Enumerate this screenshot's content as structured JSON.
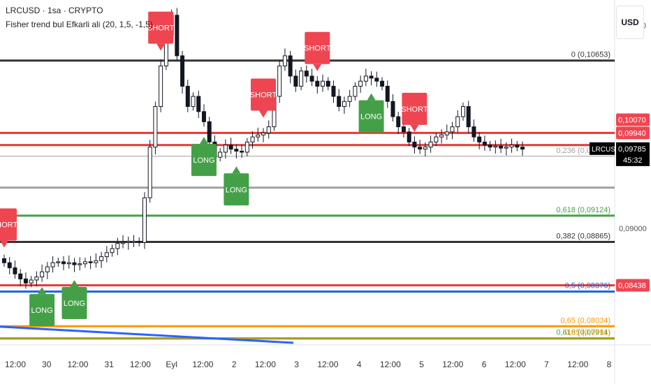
{
  "header": {
    "symbol_line": "LRCUSD · 1sa · CRYPTO",
    "indicator_line": "Fisher trend bul Efkarli ali (20, 1,5, -1,5)",
    "currency_button": "USD"
  },
  "chart_data": {
    "type": "candlestick",
    "ylim": [
      0.0785,
      0.1125
    ],
    "x_ticks": [
      "12:00",
      "30",
      "12:00",
      "31",
      "12:00",
      "Eyl",
      "12:00",
      "2",
      "12:00",
      "3",
      "12:00",
      "4",
      "12:00",
      "5",
      "12:00",
      "6",
      "12:00",
      "7",
      "12:00",
      "8"
    ],
    "y_ticks": [
      "0,11000",
      "0,09000"
    ],
    "closes": [
      0.0866,
      0.0861,
      0.0855,
      0.085,
      0.0846,
      0.0849,
      0.0852,
      0.0857,
      0.0862,
      0.0866,
      0.0867,
      0.0865,
      0.0866,
      0.0864,
      0.0865,
      0.0867,
      0.0866,
      0.0868,
      0.0872,
      0.0876,
      0.088,
      0.0885,
      0.0886,
      0.0887,
      0.0887,
      0.0886,
      0.093,
      0.098,
      0.102,
      0.106,
      0.109,
      0.111,
      0.107,
      0.104,
      0.102,
      0.103,
      0.1015,
      0.1005,
      0.0985,
      0.097,
      0.0975,
      0.0982,
      0.0978,
      0.0976,
      0.0975,
      0.0985,
      0.099,
      0.0992,
      0.0994,
      0.1,
      0.103,
      0.106,
      0.107,
      0.105,
      0.104,
      0.1055,
      0.105,
      0.1045,
      0.104,
      0.1045,
      0.104,
      0.103,
      0.102,
      0.1025,
      0.103,
      0.104,
      0.1045,
      0.105,
      0.1048,
      0.1045,
      0.104,
      0.1025,
      0.101,
      0.1,
      0.0995,
      0.0985,
      0.098,
      0.0978,
      0.098,
      0.0985,
      0.099,
      0.0992,
      0.0995,
      0.1,
      0.101,
      0.102,
      0.1,
      0.099,
      0.0985,
      0.0982,
      0.098,
      0.0981,
      0.0979,
      0.098,
      0.0982,
      0.098,
      0.0978
    ],
    "hlines": [
      {
        "name": "0",
        "value": 0.10653,
        "label": "0 (0,10653)",
        "color": "#333333",
        "width": 3
      },
      {
        "name": "red-upper",
        "value": 0.0994,
        "label": "",
        "color": "#e53935",
        "width": 3
      },
      {
        "name": "red-mid",
        "value": 0.0982,
        "label": "",
        "color": "#e53935",
        "width": 3
      },
      {
        "name": "0.236",
        "value": 0.0971,
        "label": "0,236 (0,09710)",
        "color": "#a0a0a0",
        "width": 1
      },
      {
        "name": "grey-0.09400",
        "value": 0.094,
        "label": "",
        "color": "#a0a0a0",
        "width": 3
      },
      {
        "name": "0.618",
        "value": 0.09124,
        "label": "0,618 (0,09124)",
        "color": "#43a047",
        "width": 3
      },
      {
        "name": "0.382",
        "value": 0.08865,
        "label": "0,382 (0,08865)",
        "color": "#333333",
        "width": 3
      },
      {
        "name": "red-lower",
        "value": 0.08438,
        "label": "",
        "color": "#e53935",
        "width": 3
      },
      {
        "name": "0.5",
        "value": 0.08376,
        "label": "0,5 (0,08376)",
        "color": "#1e63d6",
        "width": 3
      },
      {
        "name": "0.65",
        "value": 0.08034,
        "label": "0,65 (0,08034)",
        "color": "#ff9800",
        "width": 3
      },
      {
        "name": "0.618b",
        "value": 0.07914,
        "label": "0,618 (0,07914)",
        "color": "#43a047",
        "width": 3
      },
      {
        "name": "0.65b",
        "value": 0.07914,
        "label": "0,65 (0,0791)",
        "color": "#ff9800",
        "width": 1
      }
    ],
    "price_tags": [
      {
        "value": 0.1007,
        "label": "0,10070",
        "color": "#ef4551",
        "text_color": "#ffffff"
      },
      {
        "value": 0.0994,
        "label": "0,09940",
        "color": "#ef4551",
        "text_color": "#ffffff"
      },
      {
        "value": 0.08438,
        "label": "0,08438",
        "color": "#ef4551",
        "text_color": "#ffffff"
      }
    ],
    "current": {
      "symbol": "LRCUSD",
      "price": "0,09785",
      "countdown": "45:32"
    },
    "signals": [
      {
        "type": "SHORT",
        "bar": 0
      },
      {
        "type": "LONG",
        "bar": 7
      },
      {
        "type": "LONG",
        "bar": 13
      },
      {
        "type": "SHORT",
        "bar": 29
      },
      {
        "type": "LONG",
        "bar": 37
      },
      {
        "type": "LONG",
        "bar": 43
      },
      {
        "type": "SHORT",
        "bar": 48
      },
      {
        "type": "SHORT",
        "bar": 58
      },
      {
        "type": "LONG",
        "bar": 68
      },
      {
        "type": "SHORT",
        "bar": 76
      }
    ],
    "colors": {
      "up": "#26a69a",
      "long": "#43a047",
      "short": "#ef4551",
      "trend": "#2962ff"
    }
  }
}
